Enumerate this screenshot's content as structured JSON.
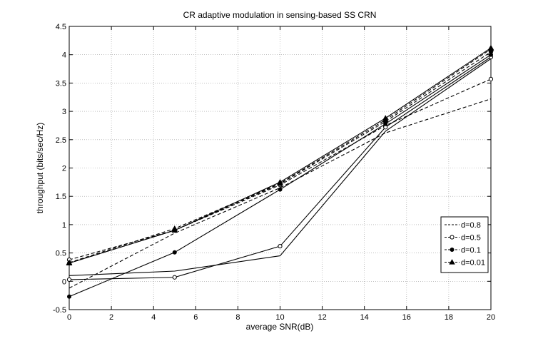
{
  "chart_data": {
    "type": "line",
    "title": "CR adaptive modulation in sensing-based SS CRN",
    "xlabel": "average SNR(dB)",
    "ylabel": "throughput (bits/sec/Hz)",
    "xlim": [
      0,
      20
    ],
    "ylim": [
      -0.5,
      4.5
    ],
    "xticks": [
      0,
      2,
      4,
      6,
      8,
      10,
      12,
      14,
      16,
      18,
      20
    ],
    "yticks": [
      -0.5,
      0,
      0.5,
      1,
      1.5,
      2,
      2.5,
      3,
      3.5,
      4,
      4.5
    ],
    "grid": true,
    "legend_position": "bottom-right",
    "series": [
      {
        "name": "d=0.8",
        "line": "dashed",
        "marker": "none",
        "x": [
          0,
          5,
          10,
          15,
          20
        ],
        "y": [
          -0.12,
          0.85,
          1.65,
          2.62,
          3.22
        ]
      },
      {
        "name": "",
        "line": "solid",
        "marker": "none",
        "x": [
          0,
          5,
          10,
          15,
          20
        ],
        "y": [
          0.1,
          0.18,
          0.45,
          2.65,
          3.93
        ]
      },
      {
        "name": "d=0.5",
        "line": "dashed",
        "marker": "circle",
        "x": [
          0,
          5,
          10,
          15,
          20
        ],
        "y": [
          0.38,
          0.9,
          1.7,
          2.75,
          3.57
        ]
      },
      {
        "name": "",
        "line": "solid",
        "marker": "circle",
        "x": [
          0,
          5,
          10,
          15,
          20
        ],
        "y": [
          0.03,
          0.07,
          0.62,
          2.72,
          3.96
        ]
      },
      {
        "name": "d=0.1",
        "line": "dashed",
        "marker": "star",
        "x": [
          0,
          5,
          10,
          15,
          20
        ],
        "y": [
          0.32,
          0.9,
          1.72,
          2.82,
          4.05
        ]
      },
      {
        "name": "",
        "line": "solid",
        "marker": "star",
        "x": [
          0,
          5,
          10,
          15,
          20
        ],
        "y": [
          -0.27,
          0.51,
          1.62,
          2.78,
          4.0
        ]
      },
      {
        "name": "d=0.01",
        "line": "dashed",
        "marker": "triangle",
        "x": [
          0,
          5,
          10,
          15,
          20
        ],
        "y": [
          0.33,
          0.93,
          1.73,
          2.85,
          4.1
        ]
      },
      {
        "name": "",
        "line": "solid",
        "marker": "triangle",
        "x": [
          0,
          5,
          10,
          15,
          20
        ],
        "y": [
          0.32,
          0.9,
          1.75,
          2.88,
          4.12
        ]
      }
    ]
  }
}
